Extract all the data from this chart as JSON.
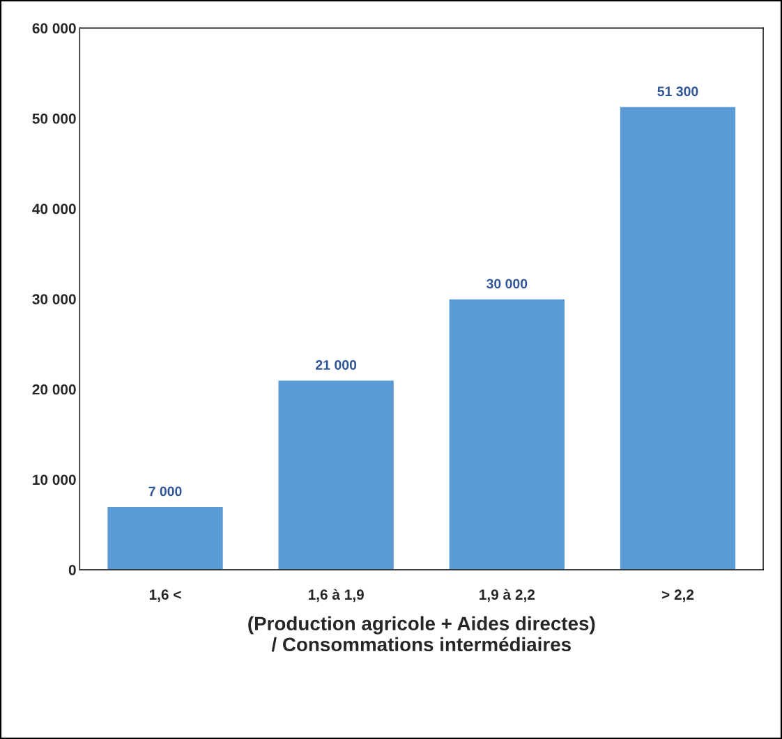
{
  "chart_data": {
    "type": "bar",
    "categories": [
      "1,6 <",
      "1,6 à 1,9",
      "1,9 à 2,2",
      "> 2,2"
    ],
    "values": [
      7000,
      21000,
      30000,
      51300
    ],
    "value_labels": [
      "7 000",
      "21 000",
      "30 000",
      "51 300"
    ],
    "color": "#5b9bd5",
    "xlabel": "(Production agricole + Aides directes)\n/ Consommations intermédiaires",
    "ylim": [
      0,
      60000
    ],
    "yticks": [
      {
        "value": 0,
        "label": "0"
      },
      {
        "value": 10000,
        "label": "10 000"
      },
      {
        "value": 20000,
        "label": "20 000"
      },
      {
        "value": 30000,
        "label": "30 000"
      },
      {
        "value": 40000,
        "label": "40 000"
      },
      {
        "value": 50000,
        "label": "50 000"
      },
      {
        "value": 60000,
        "label": "60 000"
      }
    ],
    "grid": false,
    "legend": false
  }
}
